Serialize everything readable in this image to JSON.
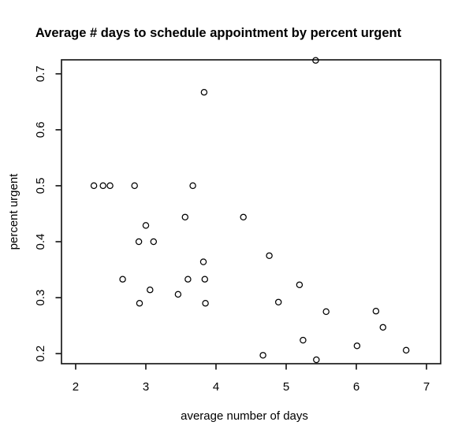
{
  "page": {
    "background": "#ffffff"
  },
  "chart_data": {
    "type": "scatter",
    "title": "Average # days to schedule appointment by percent urgent",
    "xlabel": "average number of days",
    "ylabel": "percent urgent",
    "x_ticks": [
      2,
      3,
      4,
      5,
      6,
      7
    ],
    "x_tick_labels": [
      "2",
      "3",
      "4",
      "5",
      "6",
      "7"
    ],
    "y_ticks": [
      0.2,
      0.3,
      0.4,
      0.5,
      0.6,
      0.7
    ],
    "y_tick_labels": [
      "0.2",
      "0.3",
      "0.4",
      "0.5",
      "0.6",
      "0.7"
    ],
    "xlim": [
      1.798,
      7.202
    ],
    "ylim": [
      0.182,
      0.725
    ],
    "grid": false,
    "legend": "none",
    "marker": "open-circle",
    "marker_color": "#000000",
    "axis_color": "#1c1c1c",
    "points": [
      {
        "x": 2.26,
        "y": 0.5
      },
      {
        "x": 2.39,
        "y": 0.5
      },
      {
        "x": 2.49,
        "y": 0.5
      },
      {
        "x": 2.84,
        "y": 0.5
      },
      {
        "x": 3.67,
        "y": 0.5
      },
      {
        "x": 3.83,
        "y": 0.667
      },
      {
        "x": 3.56,
        "y": 0.444
      },
      {
        "x": 4.39,
        "y": 0.444
      },
      {
        "x": 3.0,
        "y": 0.429
      },
      {
        "x": 2.9,
        "y": 0.4
      },
      {
        "x": 3.11,
        "y": 0.4
      },
      {
        "x": 2.67,
        "y": 0.333
      },
      {
        "x": 3.6,
        "y": 0.333
      },
      {
        "x": 3.84,
        "y": 0.333
      },
      {
        "x": 3.82,
        "y": 0.364
      },
      {
        "x": 3.06,
        "y": 0.314
      },
      {
        "x": 3.46,
        "y": 0.306
      },
      {
        "x": 2.91,
        "y": 0.29
      },
      {
        "x": 3.85,
        "y": 0.29
      },
      {
        "x": 4.76,
        "y": 0.375
      },
      {
        "x": 5.19,
        "y": 0.323
      },
      {
        "x": 4.89,
        "y": 0.292
      },
      {
        "x": 5.57,
        "y": 0.275
      },
      {
        "x": 6.28,
        "y": 0.276
      },
      {
        "x": 6.38,
        "y": 0.247
      },
      {
        "x": 5.24,
        "y": 0.224
      },
      {
        "x": 6.01,
        "y": 0.214
      },
      {
        "x": 6.71,
        "y": 0.206
      },
      {
        "x": 4.67,
        "y": 0.197
      },
      {
        "x": 5.43,
        "y": 0.189
      },
      {
        "x": 5.42,
        "y": 0.724
      }
    ]
  }
}
